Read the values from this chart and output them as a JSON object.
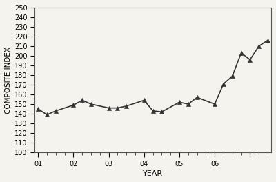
{
  "x_values": [
    0.0,
    0.25,
    0.5,
    1.0,
    1.25,
    1.5,
    2.0,
    2.25,
    2.5,
    3.0,
    3.25,
    3.5,
    4.0,
    4.25,
    4.5,
    5.0,
    5.25,
    5.5,
    5.75,
    6.0,
    6.25,
    6.5
  ],
  "y_values": [
    145,
    139,
    143,
    149,
    154,
    150,
    146,
    146,
    148,
    154,
    143,
    142,
    152,
    150,
    157,
    150,
    171,
    179,
    203,
    196,
    210,
    216
  ],
  "x_ticks": [
    0,
    1,
    2,
    3,
    4,
    5,
    6
  ],
  "x_tick_labels": [
    "01",
    "02",
    "03",
    "04",
    "05",
    "06",
    ""
  ],
  "y_ticks": [
    100,
    110,
    120,
    130,
    140,
    150,
    160,
    170,
    180,
    190,
    200,
    210,
    220,
    230,
    240,
    250
  ],
  "ylim": [
    100,
    250
  ],
  "xlim": [
    -0.1,
    6.6
  ],
  "xlabel": "YEAR",
  "ylabel": "COMPOSITE INDEX",
  "line_color": "#333333",
  "marker": "^",
  "marker_size": 4,
  "marker_color": "#333333",
  "background_color": "#f5f3ee",
  "linewidth": 1.2
}
